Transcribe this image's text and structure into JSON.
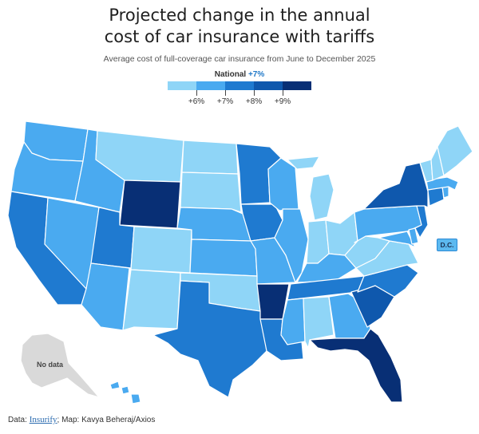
{
  "title_line1": "Projected change in the annual",
  "title_line2": "cost of car insurance with tariffs",
  "subtitle": "Average cost of full-coverage car insurance from June to December 2025",
  "national": {
    "label": "National",
    "value": "+7%"
  },
  "legend": {
    "colors": [
      "#8fd5f7",
      "#4aaaf0",
      "#1f7ad0",
      "#0f58ad",
      "#082f75"
    ],
    "ticks": [
      "+6%",
      "+7%",
      "+8%",
      "+9%"
    ]
  },
  "dc_label": "D.C.",
  "no_data_label": "No data",
  "footer": {
    "prefix": "Data: ",
    "source": "Insurify",
    "suffix": "; Map: Kavya Beheraj/Axios"
  },
  "states": {
    "WA": 1,
    "OR": 1,
    "CA": 2,
    "NV": 1,
    "ID": 1,
    "MT": 0,
    "WY": 4,
    "UT": 2,
    "AZ": 1,
    "CO": 0,
    "NM": 0,
    "ND": 0,
    "SD": 0,
    "NE": 1,
    "KS": 1,
    "OK": 0,
    "TX": 2,
    "MN": 2,
    "IA": 2,
    "MO": 1,
    "AR": 4,
    "LA": 2,
    "WI": 1,
    "IL": 1,
    "MI": 0,
    "IN": 0,
    "OH": 0,
    "KY": 1,
    "TN": 2,
    "MS": 1,
    "AL": 0,
    "GA": 1,
    "FL": 4,
    "SC": 3,
    "NC": 2,
    "VA": 0,
    "WV": 0,
    "PA": 1,
    "NY": 3,
    "NJ": 2,
    "DE": 1,
    "MD": 1,
    "CT": 2,
    "RI": 1,
    "MA": 1,
    "VT": 0,
    "NH": 0,
    "ME": 0,
    "HI": 1
  }
}
